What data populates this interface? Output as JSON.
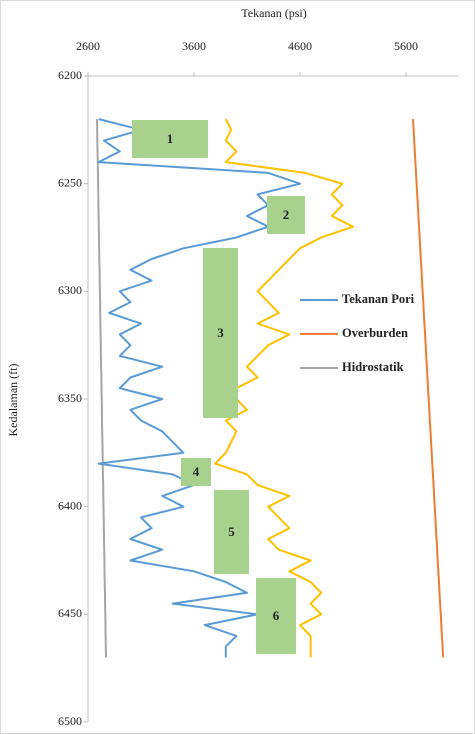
{
  "chart_data": {
    "type": "line",
    "x_label": "Tekanan (psi)",
    "y_label": "Kedalaman (ft)",
    "xlim": [
      2600,
      6100
    ],
    "xticks": [
      2600,
      3600,
      4600,
      5600
    ],
    "ylim": [
      6200,
      6500
    ],
    "yticks": [
      6200,
      6250,
      6300,
      6350,
      6400,
      6450,
      6500
    ],
    "y_inverted": true,
    "x_axis_position": "top",
    "grid": false,
    "y": [
      6220,
      6225,
      6230,
      6235,
      6240,
      6245,
      6250,
      6255,
      6260,
      6265,
      6270,
      6275,
      6280,
      6285,
      6290,
      6295,
      6300,
      6305,
      6310,
      6315,
      6320,
      6325,
      6330,
      6335,
      6340,
      6345,
      6350,
      6355,
      6360,
      6365,
      6370,
      6375,
      6380,
      6385,
      6390,
      6395,
      6400,
      6405,
      6410,
      6415,
      6420,
      6425,
      6430,
      6435,
      6440,
      6445,
      6450,
      6455,
      6460,
      6465,
      6470
    ],
    "series": [
      {
        "name": "Tekanan Pori",
        "color": "#5b9bd5",
        "values": [
          2700,
          3100,
          2750,
          2900,
          2700,
          4300,
          4600,
          4200,
          4300,
          4100,
          4300,
          4000,
          3500,
          3200,
          3000,
          3200,
          2900,
          3000,
          2800,
          3100,
          2900,
          3000,
          2900,
          3300,
          3000,
          2900,
          3300,
          3000,
          3100,
          3300,
          3400,
          3500,
          2700,
          3400,
          3600,
          3300,
          3500,
          3100,
          3200,
          3000,
          3300,
          3000,
          3600,
          3900,
          4100,
          3400,
          4200,
          3700,
          4000,
          3900,
          3900
        ]
      },
      {
        "name": "Overburden",
        "color": "#ed7d31",
        "values": [
          5666,
          5672,
          5677,
          5683,
          5689,
          5694,
          5700,
          5706,
          5712,
          5717,
          5723,
          5729,
          5734,
          5740,
          5746,
          5751,
          5757,
          5763,
          5768,
          5774,
          5780,
          5786,
          5791,
          5797,
          5803,
          5808,
          5814,
          5820,
          5825,
          5831,
          5837,
          5842,
          5848,
          5854,
          5860,
          5865,
          5871,
          5877,
          5882,
          5888,
          5894,
          5899,
          5905,
          5911,
          5916,
          5922,
          5928,
          5933,
          5939,
          5945,
          5950
        ]
      },
      {
        "name": "Hidrostatik",
        "color": "#a5a5a5",
        "values": [
          2685,
          2687,
          2688,
          2690,
          2692,
          2693,
          2695,
          2697,
          2698,
          2700,
          2702,
          2704,
          2705,
          2707,
          2709,
          2710,
          2712,
          2714,
          2715,
          2717,
          2719,
          2721,
          2722,
          2724,
          2726,
          2727,
          2729,
          2731,
          2732,
          2734,
          2736,
          2738,
          2739,
          2741,
          2743,
          2744,
          2746,
          2748,
          2749,
          2751,
          2753,
          2755,
          2756,
          2758,
          2760,
          2761,
          2763,
          2765,
          2766,
          2768,
          2770
        ]
      },
      {
        "color": "#ffc000",
        "values": [
          3900,
          3950,
          3900,
          4000,
          3900,
          4650,
          5000,
          4900,
          5000,
          4900,
          5100,
          4800,
          4600,
          4500,
          4400,
          4300,
          4200,
          4300,
          4400,
          4200,
          4500,
          4300,
          4200,
          4100,
          4200,
          4000,
          4000,
          4100,
          3900,
          4000,
          3950,
          3900,
          3800,
          4100,
          4200,
          4500,
          4300,
          4400,
          4500,
          4300,
          4400,
          4700,
          4500,
          4700,
          4800,
          4700,
          4800,
          4600,
          4700,
          4700,
          4700
        ]
      }
    ],
    "annotations": [
      "1",
      "2",
      "3",
      "4",
      "5",
      "6"
    ],
    "annotation_color": "#a9d18e",
    "legend": "right"
  }
}
